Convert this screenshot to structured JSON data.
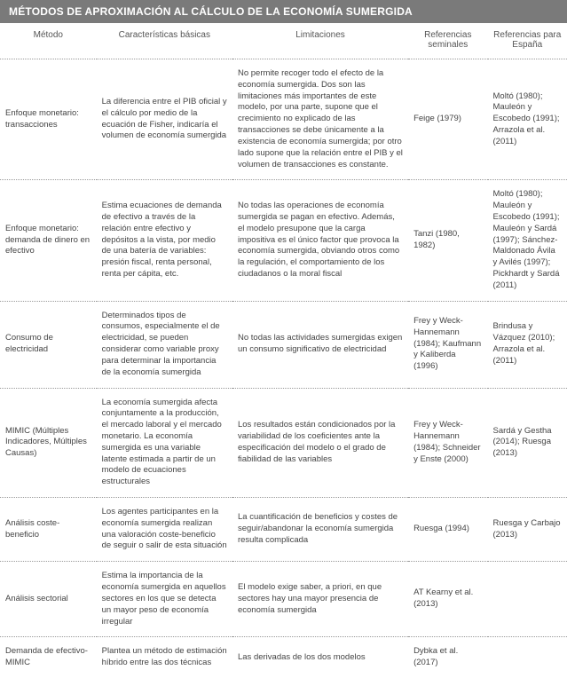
{
  "title": "MÉTODOS DE APROXIMACIÓN AL CÁLCULO DE LA ECONOMÍA SUMERGIDA",
  "columns": {
    "c0": "Método",
    "c1": "Características básicas",
    "c2": "Limitaciones",
    "c3": "Referencias seminales",
    "c4": "Referencias para España"
  },
  "rows": [
    {
      "method": "Enfoque monetario: transacciones",
      "caract": "La diferencia entre el PIB oficial y el cálculo por medio de la ecuación de Fisher, indicaría el volumen de economía sumergida",
      "limit": "No permite recoger todo el efecto de la economía sumergida. Dos son las limitaciones más importantes de este modelo, por una parte, supone que el crecimiento no explicado de las transacciones se debe únicamente a la existencia de economía sumergida; por otro lado supone que la relación entre el PIB y el volumen de transacciones es constante.",
      "ref1": "Feige (1979)",
      "ref2": "Moltó (1980); Mauleón y Escobedo (1991); Arrazola et al. (2011)"
    },
    {
      "method": "Enfoque monetario: demanda de dinero en efectivo",
      "caract": "Estima ecuaciones de demanda de efectivo a través de la relación entre efectivo y depósitos a la vista, por medio de una batería de variables: presión fiscal, renta personal, renta per cápita, etc.",
      "limit": "No todas las operaciones de economía sumergida se pagan en efectivo. Además, el modelo presupone que la carga impositiva es el único factor que provoca la economía sumergida, obviando otros como la regulación, el comportamiento de los ciudadanos o la moral fiscal",
      "ref1": "Tanzi (1980, 1982)",
      "ref2": "Moltó (1980); Mauleón y Escobedo (1991); Mauleón y Sardá (1997); Sánchez-Maldonado Ávila y Avilés (1997); Pickhardt y Sardá (2011)"
    },
    {
      "method": "Consumo de electricidad",
      "caract": "Determinados tipos de consumos, especialmente el de electricidad, se pueden considerar como variable proxy para determinar la importancia de la economía sumergida",
      "limit": "No todas las actividades sumergidas exigen un consumo significativo de electricidad",
      "ref1": "Frey y Weck-Hannemann (1984); Kaufmann y Kaliberda (1996)",
      "ref2": "Brindusa y Vázquez (2010); Arrazola et al. (2011)"
    },
    {
      "method": "MIMIC (Múltiples Indicadores, Múltiples Causas)",
      "caract": "La economía sumergida afecta conjuntamente a la producción, el mercado laboral y el mercado monetario. La economía sumergida es una variable latente estimada a partir de un modelo de ecuaciones estructurales",
      "limit": "Los resultados están condicionados por la variabilidad de los coeficientes ante la especificación del modelo o el grado de fiabilidad de las variables",
      "ref1": "Frey y Weck-Hannemann (1984); Schneider y Enste (2000)",
      "ref2": "Sardá y Gestha (2014); Ruesga (2013)"
    },
    {
      "method": "Análisis coste-beneficio",
      "caract": "Los agentes participantes en la economía sumergida realizan una valoración coste-beneficio de seguir o salir de esta situación",
      "limit": "La cuantificación de beneficios y costes de seguir/abandonar la economía sumergida resulta complicada",
      "ref1": "Ruesga (1994)",
      "ref2": "Ruesga y Carbajo (2013)"
    },
    {
      "method": "Análisis sectorial",
      "caract": "Estima la importancia de la economía sumergida en aquellos sectores en los que se detecta un mayor peso de economía irregular",
      "limit": "El modelo exige saber, a priori, en que sectores hay una mayor presencia de economía sumergida",
      "ref1": "AT Kearny et al. (2013)",
      "ref2": ""
    },
    {
      "method": "Demanda de efectivo-MIMIC",
      "caract": "Plantea un método de estimación híbrido entre las dos técnicas",
      "limit": "Las derivadas de los dos modelos",
      "ref1": "Dybka et al. (2017)",
      "ref2": ""
    }
  ]
}
